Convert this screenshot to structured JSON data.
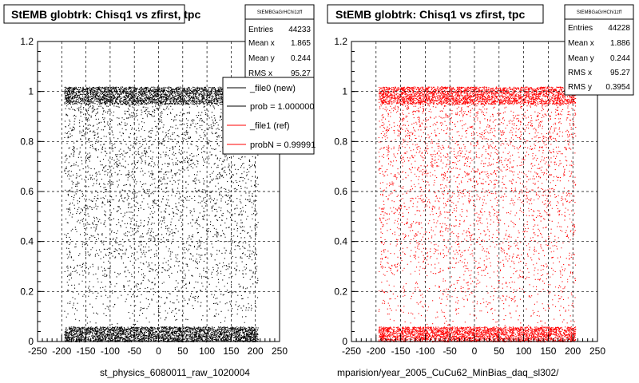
{
  "colors": {
    "new": "#000000",
    "ref": "#ff0000",
    "frame": "#000000",
    "grid": "#000000"
  },
  "panels": [
    {
      "title": "StEMB globtrk: Chisq1 vs zfirst, tpc",
      "xtitle": "st_physics_6080011_raw_1020004",
      "stats": {
        "name": "StEMBGaGrHChi1zff",
        "rows": [
          {
            "label": "Entries",
            "value": "44233"
          },
          {
            "label": "Mean x",
            "value": "1.865"
          },
          {
            "label": "Mean y",
            "value": "0.244"
          },
          {
            "label": "RMS x",
            "value": "95.27"
          }
        ]
      },
      "legend": [
        {
          "label": "_file0 (new)",
          "color": "#000000"
        },
        {
          "label": "prob = 1.000000",
          "color": "#000000"
        },
        {
          "label": "_file1 (ref)",
          "color": "#ff0000"
        },
        {
          "label": "probN = 0.99991",
          "color": "#ff0000"
        }
      ]
    },
    {
      "title": "StEMB globtrk: Chisq1 vs zfirst, tpc",
      "xtitle": "mparision/year_2005_CuCu62_MinBias_daq_sl302/",
      "stats": {
        "name": "StEMBGaGrHChi1zff",
        "rows": [
          {
            "label": "Entries",
            "value": "44228"
          },
          {
            "label": "Mean x",
            "value": "1.886"
          },
          {
            "label": "Mean y",
            "value": "0.244"
          },
          {
            "label": "RMS x",
            "value": "95.27"
          },
          {
            "label": "RMS y",
            "value": "0.3954"
          }
        ]
      }
    }
  ],
  "chart_data": [
    {
      "type": "scatter",
      "title": "StEMB globtrk: Chisq1 vs zfirst, tpc",
      "xlabel": "st_physics_6080011_raw_1020004",
      "ylabel": "",
      "xlim": [
        -250,
        250
      ],
      "ylim": [
        0,
        1.2
      ],
      "xticks": [
        "-250",
        "-200",
        "-150",
        "-100",
        "-50",
        "0",
        "50",
        "100",
        "150",
        "200",
        "250"
      ],
      "yticks": [
        "0",
        "0.2",
        "0.4",
        "0.6",
        "0.8",
        "1",
        "1.2"
      ],
      "grid": true,
      "series": [
        {
          "name": "_file0 (new)",
          "color": "#000000",
          "x_range": [
            -195,
            205
          ],
          "bands": [
            {
              "y": [
                0,
                0.06
              ],
              "fraction": 0.32
            },
            {
              "y": [
                0.95,
                1.02
              ],
              "fraction": 0.33
            },
            {
              "y": [
                0.06,
                0.95
              ],
              "fraction": 0.35
            }
          ]
        }
      ],
      "legend_position": "top-right"
    },
    {
      "type": "scatter",
      "title": "StEMB globtrk: Chisq1 vs zfirst, tpc",
      "xlabel": "mparision/year_2005_CuCu62_MinBias_daq_sl302/",
      "ylabel": "",
      "xlim": [
        -250,
        250
      ],
      "ylim": [
        0,
        1.2
      ],
      "xticks": [
        "-250",
        "-200",
        "-150",
        "-100",
        "-50",
        "0",
        "50",
        "100",
        "150",
        "200",
        "250"
      ],
      "yticks": [
        "0",
        "0.2",
        "0.4",
        "0.6",
        "0.8",
        "1",
        "1.2"
      ],
      "grid": true,
      "series": [
        {
          "name": "_file1 (ref)",
          "color": "#ff0000",
          "x_range": [
            -195,
            205
          ],
          "bands": [
            {
              "y": [
                0,
                0.06
              ],
              "fraction": 0.32
            },
            {
              "y": [
                0.95,
                1.02
              ],
              "fraction": 0.33
            },
            {
              "y": [
                0.06,
                0.95
              ],
              "fraction": 0.35
            }
          ]
        }
      ]
    }
  ]
}
